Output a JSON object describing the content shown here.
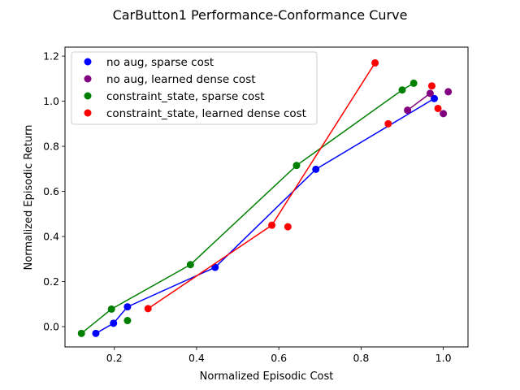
{
  "chart_data": {
    "type": "scatter",
    "title": "CarButton1 Performance-Conformance Curve",
    "xlabel": "Normalized Episodic Cost",
    "ylabel": "Normalized Episodic Return",
    "xlim": [
      0.08,
      1.06
    ],
    "ylim": [
      -0.09,
      1.24
    ],
    "xticks": [
      0.2,
      0.4,
      0.6,
      0.8,
      1.0
    ],
    "xtick_labels": [
      "0.2",
      "0.4",
      "0.6",
      "0.8",
      "1.0"
    ],
    "yticks": [
      0.0,
      0.2,
      0.4,
      0.6,
      0.8,
      1.0,
      1.2
    ],
    "ytick_labels": [
      "0.0",
      "0.2",
      "0.4",
      "0.6",
      "0.8",
      "1.0",
      "1.2"
    ],
    "grid": false,
    "legend_position": "top-left",
    "series": [
      {
        "name": "no aug, sparse cost",
        "color": "#0000ff",
        "points": [
          [
            0.155,
            -0.03
          ],
          [
            0.198,
            0.015
          ],
          [
            0.232,
            0.088
          ],
          [
            0.445,
            0.263
          ],
          [
            0.69,
            0.698
          ],
          [
            0.978,
            1.012
          ]
        ],
        "frontier": [
          [
            0.155,
            -0.03
          ],
          [
            0.198,
            0.015
          ],
          [
            0.232,
            0.088
          ],
          [
            0.445,
            0.263
          ],
          [
            0.69,
            0.698
          ],
          [
            0.978,
            1.012
          ]
        ]
      },
      {
        "name": "no aug, learned dense cost",
        "color": "#800080",
        "points": [
          [
            0.913,
            0.96
          ],
          [
            0.968,
            1.035
          ],
          [
            1.0,
            0.945
          ],
          [
            1.012,
            1.042
          ]
        ],
        "frontier": [
          [
            0.913,
            0.96
          ],
          [
            0.968,
            1.035
          ]
        ]
      },
      {
        "name": "constraint_state, sparse cost",
        "color": "#008000",
        "points": [
          [
            0.12,
            -0.03
          ],
          [
            0.193,
            0.078
          ],
          [
            0.232,
            0.027
          ],
          [
            0.385,
            0.275
          ],
          [
            0.643,
            0.715
          ],
          [
            0.9,
            1.05
          ],
          [
            0.928,
            1.08
          ]
        ],
        "frontier": [
          [
            0.12,
            -0.03
          ],
          [
            0.193,
            0.078
          ],
          [
            0.385,
            0.275
          ],
          [
            0.643,
            0.715
          ],
          [
            0.9,
            1.05
          ],
          [
            0.928,
            1.08
          ]
        ]
      },
      {
        "name": "constraint_state, learned dense cost",
        "color": "#ff0000",
        "points": [
          [
            0.282,
            0.08
          ],
          [
            0.583,
            0.45
          ],
          [
            0.622,
            0.443
          ],
          [
            0.834,
            1.17
          ],
          [
            0.866,
            0.9
          ],
          [
            0.972,
            1.068
          ],
          [
            0.987,
            0.968
          ]
        ],
        "frontier": [
          [
            0.282,
            0.08
          ],
          [
            0.583,
            0.45
          ],
          [
            0.834,
            1.17
          ]
        ]
      }
    ]
  }
}
